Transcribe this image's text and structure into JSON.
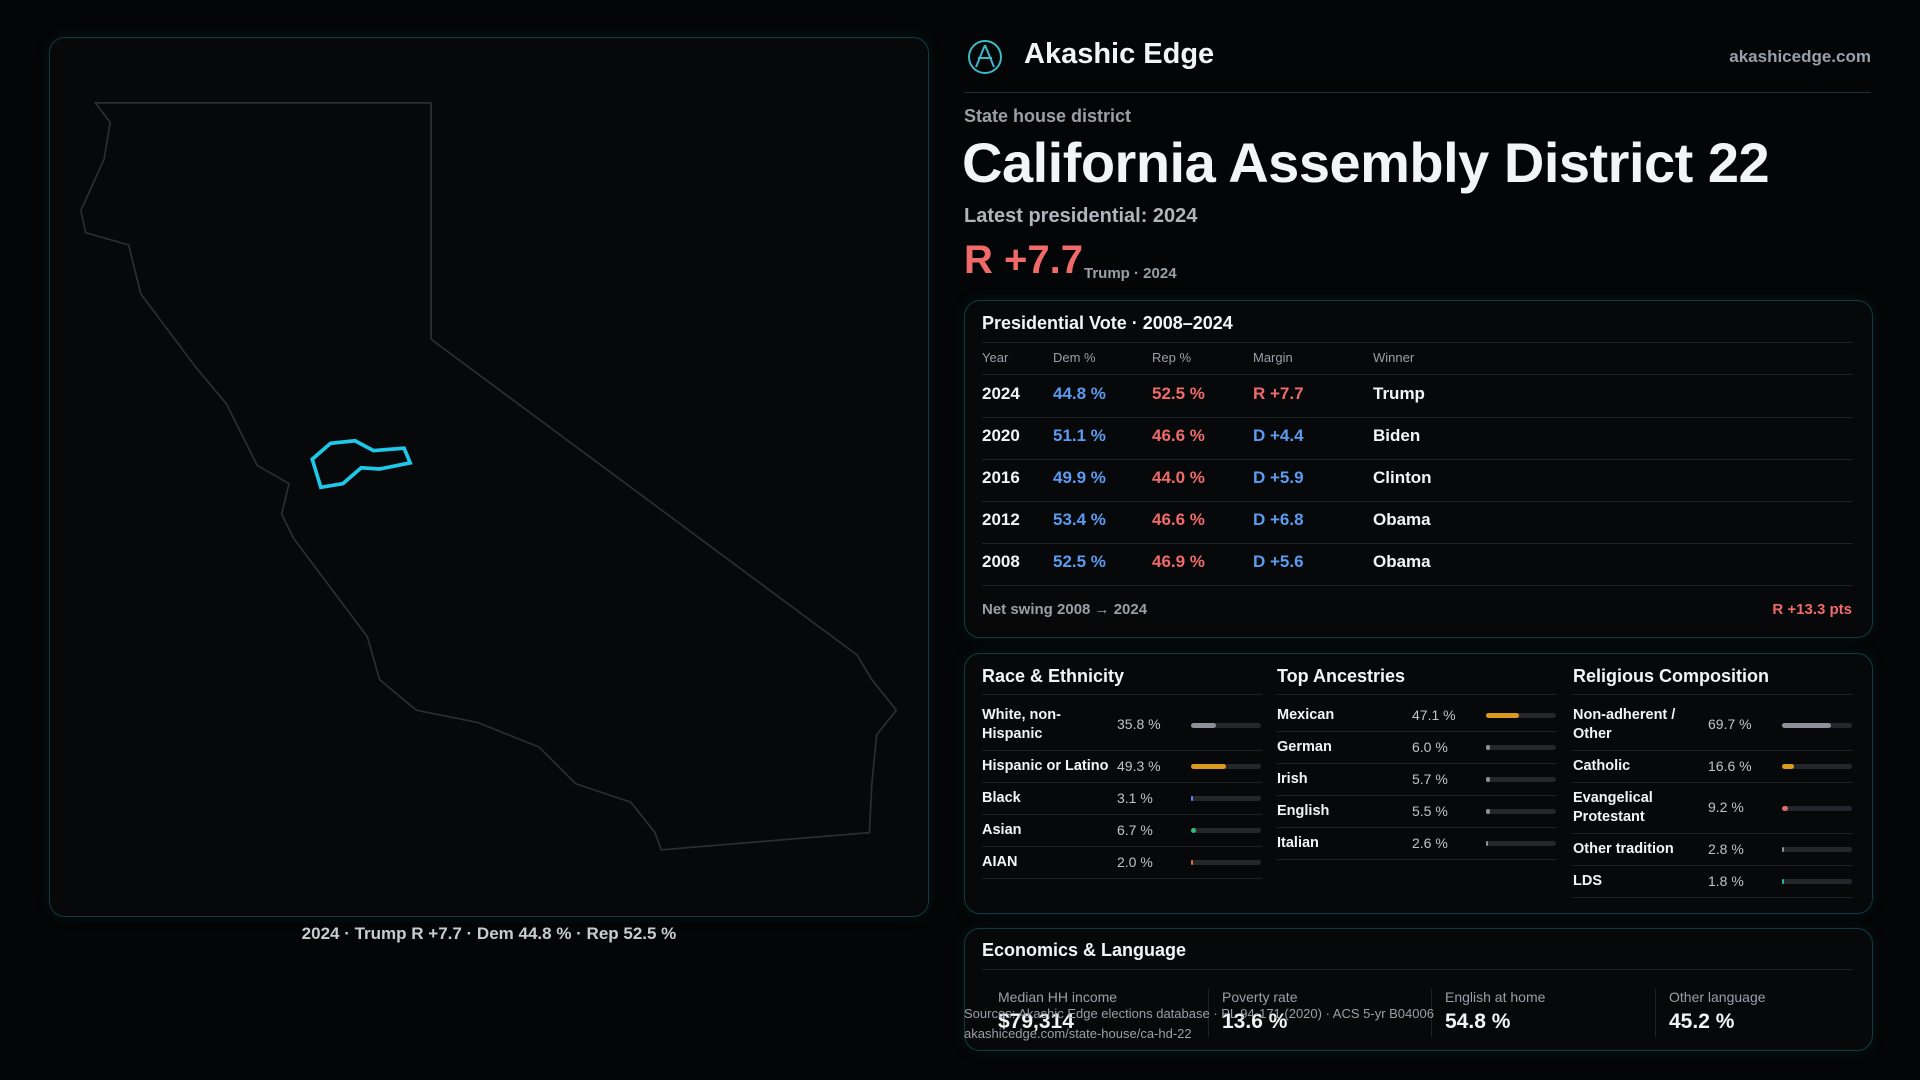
{
  "header": {
    "brand": "Akashic Edge",
    "domain": "akashicedge.com"
  },
  "district": {
    "type_label": "State house district",
    "name": "California Assembly District 22",
    "latest_label": "Latest presidential: 2024",
    "margin": "R +7.7",
    "margin_note": "Trump · 2024"
  },
  "map": {
    "caption": "2024 · Trump R +7.7 · Dem 44.8 % · Rep 52.5 %"
  },
  "presidential": {
    "title": "Presidential Vote · 2008–2024",
    "columns": [
      "Year",
      "Dem %",
      "Rep %",
      "Margin",
      "Winner"
    ],
    "rows": [
      [
        "2024",
        "44.8 %",
        "52.5 %",
        "R +7.7",
        "Trump"
      ],
      [
        "2020",
        "51.1 %",
        "46.6 %",
        "D +4.4",
        "Biden"
      ],
      [
        "2016",
        "49.9 %",
        "44.0 %",
        "D +5.9",
        "Clinton"
      ],
      [
        "2012",
        "53.4 %",
        "46.6 %",
        "D +6.8",
        "Obama"
      ],
      [
        "2008",
        "52.5 %",
        "46.9 %",
        "D +5.6",
        "Obama"
      ]
    ],
    "net_swing_label": "Net swing 2008 → 2024",
    "net_swing": "R +13.3 pts"
  },
  "demographics": [
    {
      "title": "Race & Ethnicity",
      "rows": [
        {
          "label": "White, non-Hispanic",
          "value": 35.8,
          "value_label": "35.8 %",
          "color": "#8b9099"
        },
        {
          "label": "Hispanic or Latino",
          "value": 49.3,
          "value_label": "49.3 %",
          "color": "#d99a1e"
        },
        {
          "label": "Black",
          "value": 3.1,
          "value_label": "3.1 %",
          "color": "#6a7ff0"
        },
        {
          "label": "Asian",
          "value": 6.7,
          "value_label": "6.7 %",
          "color": "#2fbf7a"
        },
        {
          "label": "AIAN",
          "value": 2.0,
          "value_label": "2.0 %",
          "color": "#e0703a"
        }
      ]
    },
    {
      "title": "Top Ancestries",
      "rows": [
        {
          "label": "Mexican",
          "value": 47.1,
          "value_label": "47.1 %",
          "color": "#d99a1e"
        },
        {
          "label": "German",
          "value": 6.0,
          "value_label": "6.0 %",
          "color": "#8b9099"
        },
        {
          "label": "Irish",
          "value": 5.7,
          "value_label": "5.7 %",
          "color": "#8b9099"
        },
        {
          "label": "English",
          "value": 5.5,
          "value_label": "5.5 %",
          "color": "#8b9099"
        },
        {
          "label": "Italian",
          "value": 2.6,
          "value_label": "2.6 %",
          "color": "#8b9099"
        }
      ]
    },
    {
      "title": "Religious Composition",
      "rows": [
        {
          "label": "Non-adherent / Other",
          "value": 69.7,
          "value_label": "69.7 %",
          "color": "#8b9099"
        },
        {
          "label": "Catholic",
          "value": 16.6,
          "value_label": "16.6 %",
          "color": "#d99a1e"
        },
        {
          "label": "Evangelical Protestant",
          "value": 9.2,
          "value_label": "9.2 %",
          "color": "#e06a6a"
        },
        {
          "label": "Other tradition",
          "value": 2.8,
          "value_label": "2.8 %",
          "color": "#8b9099"
        },
        {
          "label": "LDS",
          "value": 1.8,
          "value_label": "1.8 %",
          "color": "#2bb5a0"
        }
      ]
    }
  ],
  "economics": {
    "title": "Economics & Language",
    "metrics": [
      {
        "label": "Median HH income",
        "value": "$79,314"
      },
      {
        "label": "Poverty rate",
        "value": "13.6 %"
      },
      {
        "label": "English at home",
        "value": "54.8 %"
      },
      {
        "label": "Other language",
        "value": "45.2 %"
      }
    ]
  },
  "source": {
    "text": "Sources: Akashic Edge elections database · PL 94-171 (2020) · ACS 5-yr B04006",
    "url": "akashicedge.com/state-house/ca-hd-22"
  }
}
